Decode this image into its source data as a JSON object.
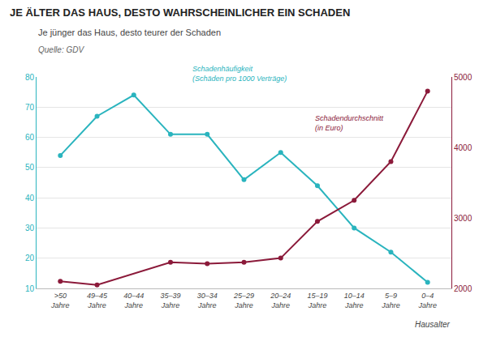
{
  "chart_data": {
    "type": "line",
    "title": "JE ÄLTER DAS HAUS, DESTO WAHRSCHEINLICHER EIN SCHADEN",
    "subtitle": "Je jünger das Haus, desto teurer der Schaden",
    "source": "Quelle: GDV",
    "x_label": "Hausalter",
    "categories": [
      ">50\nJahre",
      "49–45\nJahre",
      "40–44\nJahre",
      "35–39\nJahre",
      "30–34\nJahre",
      "25–29\nJahre",
      "20–24\nJahre",
      "15–19\nJahre",
      "10–14\nJahre",
      "5–9\nJahre",
      "0–4\nJahre"
    ],
    "series": [
      {
        "name": "Schadenhäufigkeit\n(Schäden pro 1000 Verträge)",
        "color": "#2ab4be",
        "axis": "y",
        "marker": "circle",
        "line_style": "solid",
        "values": [
          54,
          67,
          74,
          61,
          61,
          46,
          55,
          44,
          30,
          22,
          12
        ]
      },
      {
        "name": "Schadendurchschnitt\n(in Euro)",
        "color": "#8b1a3a",
        "axis": "y2",
        "marker": "circle",
        "line_style": "solid",
        "values": [
          2100,
          2050,
          null,
          2370,
          2350,
          2370,
          2430,
          2950,
          3250,
          3800,
          4800
        ]
      }
    ],
    "ylim": [
      10,
      80
    ],
    "yticks": [
      10,
      20,
      30,
      40,
      50,
      60,
      70,
      80
    ],
    "y2lim": [
      2000,
      5000
    ],
    "y2ticks": [
      2000,
      3000,
      4000,
      5000
    ],
    "grid": true
  }
}
